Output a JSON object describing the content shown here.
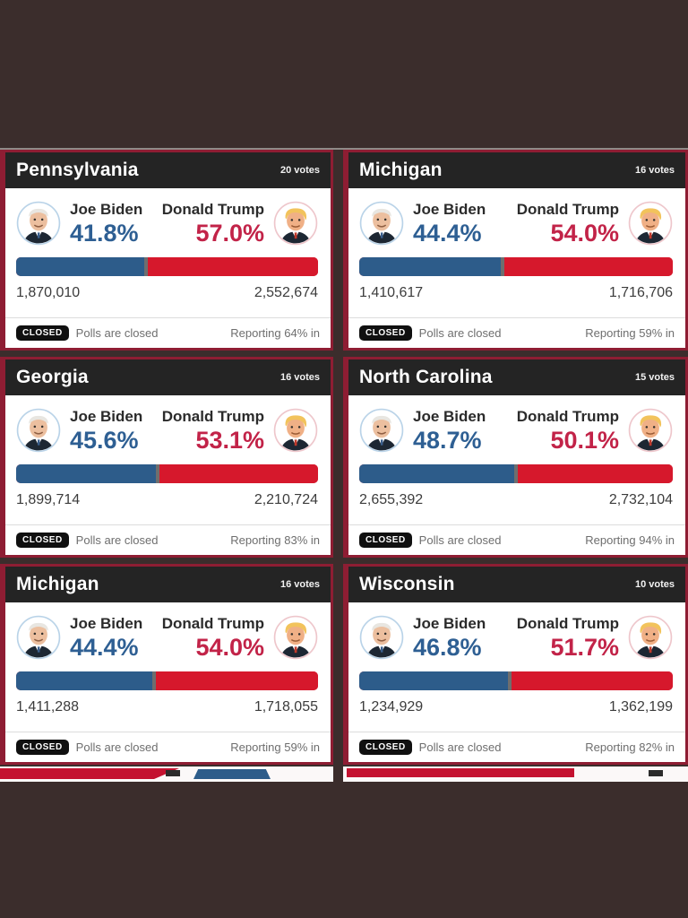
{
  "page": {
    "background_color": "#3b2d2c",
    "card_border_color": "#8e1d33",
    "header_bg_color": "#242424",
    "biden_blue": "#2e5f93",
    "trump_red": "#c22348",
    "bar_blue": "#2d5c8a",
    "bar_red": "#d6182c"
  },
  "cards": [
    {
      "state": "Pennsylvania",
      "votes": "20 votes",
      "biden_name": "Joe Biden",
      "biden_pct": "41.8%",
      "biden_votes": "1,870,010",
      "trump_name": "Donald Trump",
      "trump_pct": "57.0%",
      "trump_votes": "2,552,674",
      "closed_label": "CLOSED",
      "polls_text": "Polls are closed",
      "reporting_text": "Reporting 64% in",
      "bar_blue_width": "42.3%"
    },
    {
      "state": "Michigan",
      "votes": "16 votes",
      "biden_name": "Joe Biden",
      "biden_pct": "44.4%",
      "biden_votes": "1,410,617",
      "trump_name": "Donald Trump",
      "trump_pct": "54.0%",
      "trump_votes": "1,716,706",
      "closed_label": "CLOSED",
      "polls_text": "Polls are closed",
      "reporting_text": "Reporting 59% in",
      "bar_blue_width": "45.1%"
    },
    {
      "state": "Georgia",
      "votes": "16 votes",
      "biden_name": "Joe Biden",
      "biden_pct": "45.6%",
      "biden_votes": "1,899,714",
      "trump_name": "Donald Trump",
      "trump_pct": "53.1%",
      "trump_votes": "2,210,724",
      "closed_label": "CLOSED",
      "polls_text": "Polls are closed",
      "reporting_text": "Reporting 83% in",
      "bar_blue_width": "46.2%"
    },
    {
      "state": "North Carolina",
      "votes": "15 votes",
      "biden_name": "Joe Biden",
      "biden_pct": "48.7%",
      "biden_votes": "2,655,392",
      "trump_name": "Donald Trump",
      "trump_pct": "50.1%",
      "trump_votes": "2,732,104",
      "closed_label": "CLOSED",
      "polls_text": "Polls are closed",
      "reporting_text": "Reporting 94% in",
      "bar_blue_width": "49.3%"
    },
    {
      "state": "Michigan",
      "votes": "16 votes",
      "biden_name": "Joe Biden",
      "biden_pct": "44.4%",
      "biden_votes": "1,411,288",
      "trump_name": "Donald Trump",
      "trump_pct": "54.0%",
      "trump_votes": "1,718,055",
      "closed_label": "CLOSED",
      "polls_text": "Polls are closed",
      "reporting_text": "Reporting 59% in",
      "bar_blue_width": "45.1%"
    },
    {
      "state": "Wisconsin",
      "votes": "10 votes",
      "biden_name": "Joe Biden",
      "biden_pct": "46.8%",
      "biden_votes": "1,234,929",
      "trump_name": "Donald Trump",
      "trump_pct": "51.7%",
      "trump_votes": "1,362,199",
      "closed_label": "CLOSED",
      "polls_text": "Polls are closed",
      "reporting_text": "Reporting 82% in",
      "bar_blue_width": "47.5%"
    }
  ],
  "chart_data": {
    "type": "bar",
    "categories": [
      "Pennsylvania",
      "Michigan",
      "Georgia",
      "North Carolina",
      "Michigan",
      "Wisconsin"
    ],
    "electoral_votes": [
      20,
      16,
      16,
      15,
      16,
      10
    ],
    "series": [
      {
        "name": "Joe Biden",
        "pct": [
          41.8,
          44.4,
          45.6,
          48.7,
          44.4,
          46.8
        ],
        "votes": [
          1870010,
          1410617,
          1899714,
          2655392,
          1411288,
          1234929
        ]
      },
      {
        "name": "Donald Trump",
        "pct": [
          57.0,
          54.0,
          53.1,
          50.1,
          54.0,
          51.7
        ],
        "votes": [
          2552674,
          1716706,
          2210724,
          2732104,
          1718055,
          1362199
        ]
      }
    ],
    "reporting_pct_in": [
      64,
      59,
      83,
      94,
      59,
      82
    ],
    "status": "Polls are closed",
    "legend_position": "per-card header",
    "xlim_pct": [
      0,
      100
    ]
  }
}
